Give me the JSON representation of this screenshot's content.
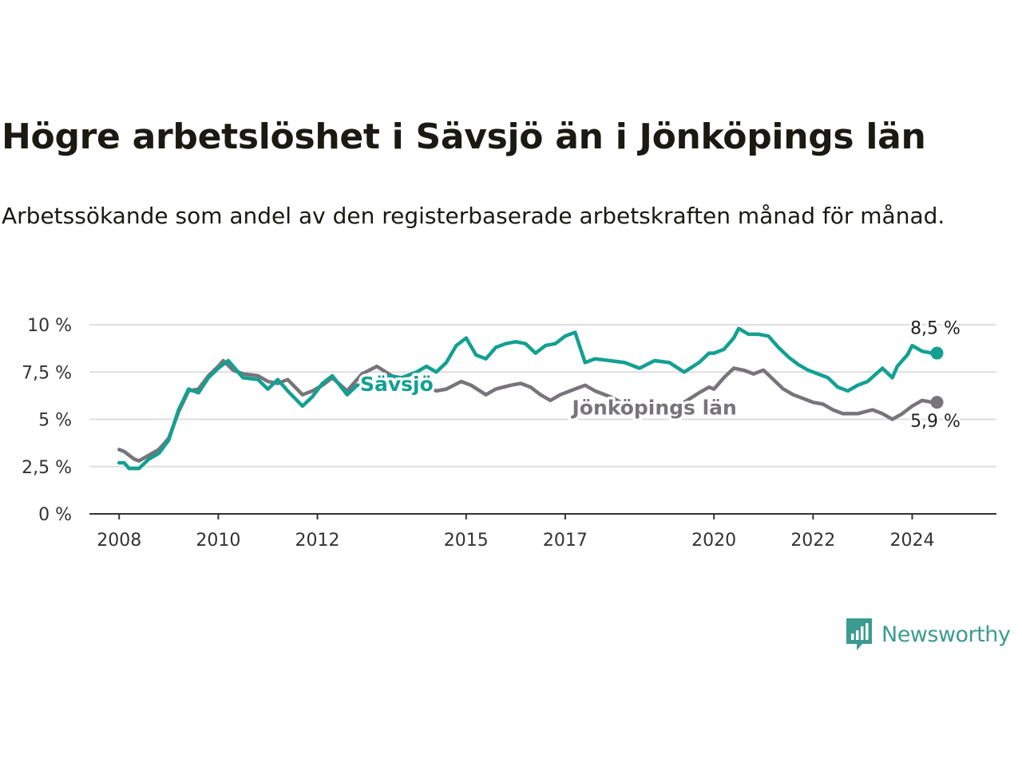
{
  "title": "Högre arbetslöshet i Sävsjö än i Jönköpings län",
  "subtitle": "Arbetssökande som andel av den registerbaserade arbetskraften månad för månad.",
  "brand": {
    "name": "Newsworthy",
    "icon": "newsworthy-logo-icon",
    "color": "#3c9b90"
  },
  "chart_data": {
    "type": "line",
    "title": "Högre arbetslöshet i Sävsjö än i Jönköpings län",
    "xlabel": "",
    "ylabel": "",
    "xlim": [
      2007.4,
      2025.7
    ],
    "ylim": [
      0,
      10
    ],
    "grid": true,
    "x_ticks": [
      2008,
      2010,
      2012,
      2015,
      2017,
      2020,
      2022,
      2024
    ],
    "x_tick_labels": [
      "2008",
      "2010",
      "2012",
      "2015",
      "2017",
      "2020",
      "2022",
      "2024"
    ],
    "y_ticks": [
      0,
      2.5,
      5,
      7.5,
      10
    ],
    "y_tick_labels": [
      "0 %",
      "2,5 %",
      "5 %",
      "7,5 %",
      "10 %"
    ],
    "series": [
      {
        "name": "Sävsjö",
        "label": "Sävsjö",
        "color": "#13a092",
        "end_label": "8,5 %",
        "points": [
          [
            2008.0,
            2.7
          ],
          [
            2008.1,
            2.7
          ],
          [
            2008.2,
            2.4
          ],
          [
            2008.4,
            2.4
          ],
          [
            2008.6,
            2.9
          ],
          [
            2008.8,
            3.2
          ],
          [
            2009.0,
            3.9
          ],
          [
            2009.2,
            5.5
          ],
          [
            2009.4,
            6.6
          ],
          [
            2009.6,
            6.4
          ],
          [
            2009.8,
            7.2
          ],
          [
            2010.0,
            7.7
          ],
          [
            2010.2,
            8.1
          ],
          [
            2010.5,
            7.2
          ],
          [
            2010.8,
            7.1
          ],
          [
            2011.0,
            6.6
          ],
          [
            2011.2,
            7.1
          ],
          [
            2011.4,
            6.5
          ],
          [
            2011.7,
            5.7
          ],
          [
            2011.9,
            6.2
          ],
          [
            2012.1,
            6.9
          ],
          [
            2012.3,
            7.3
          ],
          [
            2012.6,
            6.3
          ],
          [
            2012.8,
            6.8
          ],
          [
            2013.0,
            6.8
          ],
          [
            2013.4,
            7.3
          ],
          [
            2013.7,
            7.2
          ],
          [
            2014.0,
            7.5
          ],
          [
            2014.2,
            7.8
          ],
          [
            2014.4,
            7.5
          ],
          [
            2014.6,
            8.0
          ],
          [
            2014.8,
            8.9
          ],
          [
            2015.0,
            9.3
          ],
          [
            2015.2,
            8.4
          ],
          [
            2015.4,
            8.2
          ],
          [
            2015.6,
            8.8
          ],
          [
            2015.8,
            9.0
          ],
          [
            2016.0,
            9.1
          ],
          [
            2016.2,
            9.0
          ],
          [
            2016.4,
            8.5
          ],
          [
            2016.6,
            8.9
          ],
          [
            2016.8,
            9.0
          ],
          [
            2017.0,
            9.4
          ],
          [
            2017.2,
            9.6
          ],
          [
            2017.4,
            8.0
          ],
          [
            2017.6,
            8.2
          ],
          [
            2017.9,
            8.1
          ],
          [
            2018.2,
            8.0
          ],
          [
            2018.5,
            7.7
          ],
          [
            2018.8,
            8.1
          ],
          [
            2019.1,
            8.0
          ],
          [
            2019.4,
            7.5
          ],
          [
            2019.7,
            8.0
          ],
          [
            2019.9,
            8.5
          ],
          [
            2020.0,
            8.5
          ],
          [
            2020.2,
            8.7
          ],
          [
            2020.4,
            9.3
          ],
          [
            2020.5,
            9.8
          ],
          [
            2020.7,
            9.5
          ],
          [
            2020.9,
            9.5
          ],
          [
            2021.1,
            9.4
          ],
          [
            2021.3,
            8.8
          ],
          [
            2021.5,
            8.3
          ],
          [
            2021.7,
            7.9
          ],
          [
            2021.9,
            7.6
          ],
          [
            2022.1,
            7.4
          ],
          [
            2022.3,
            7.2
          ],
          [
            2022.5,
            6.7
          ],
          [
            2022.7,
            6.5
          ],
          [
            2022.9,
            6.8
          ],
          [
            2023.1,
            7.0
          ],
          [
            2023.4,
            7.7
          ],
          [
            2023.6,
            7.2
          ],
          [
            2023.7,
            7.8
          ],
          [
            2023.9,
            8.4
          ],
          [
            2024.0,
            8.9
          ],
          [
            2024.2,
            8.6
          ],
          [
            2024.4,
            8.5
          ],
          [
            2024.5,
            8.5
          ]
        ]
      },
      {
        "name": "Jönköpings län",
        "label": "Jönköpings län",
        "color": "#77747a",
        "end_label": "5,9 %",
        "points": [
          [
            2008.0,
            3.4
          ],
          [
            2008.1,
            3.3
          ],
          [
            2008.3,
            2.9
          ],
          [
            2008.4,
            2.8
          ],
          [
            2008.6,
            3.1
          ],
          [
            2008.8,
            3.4
          ],
          [
            2009.0,
            4.0
          ],
          [
            2009.2,
            5.4
          ],
          [
            2009.4,
            6.5
          ],
          [
            2009.6,
            6.6
          ],
          [
            2009.8,
            7.3
          ],
          [
            2010.0,
            7.8
          ],
          [
            2010.1,
            8.1
          ],
          [
            2010.3,
            7.6
          ],
          [
            2010.5,
            7.4
          ],
          [
            2010.8,
            7.3
          ],
          [
            2011.0,
            7.0
          ],
          [
            2011.2,
            6.9
          ],
          [
            2011.4,
            7.1
          ],
          [
            2011.7,
            6.3
          ],
          [
            2011.9,
            6.5
          ],
          [
            2012.1,
            6.8
          ],
          [
            2012.3,
            7.2
          ],
          [
            2012.6,
            6.5
          ],
          [
            2012.9,
            7.4
          ],
          [
            2013.2,
            7.8
          ],
          [
            2013.5,
            7.3
          ],
          [
            2013.8,
            7.1
          ],
          [
            2014.0,
            7.0
          ],
          [
            2014.2,
            6.8
          ],
          [
            2014.4,
            6.5
          ],
          [
            2014.6,
            6.6
          ],
          [
            2014.9,
            7.0
          ],
          [
            2015.1,
            6.8
          ],
          [
            2015.4,
            6.3
          ],
          [
            2015.6,
            6.6
          ],
          [
            2015.9,
            6.8
          ],
          [
            2016.1,
            6.9
          ],
          [
            2016.3,
            6.7
          ],
          [
            2016.5,
            6.3
          ],
          [
            2016.7,
            6.0
          ],
          [
            2016.9,
            6.3
          ],
          [
            2017.1,
            6.5
          ],
          [
            2017.4,
            6.8
          ],
          [
            2017.6,
            6.5
          ],
          [
            2017.9,
            6.2
          ],
          [
            2018.2,
            5.8
          ],
          [
            2018.5,
            5.5
          ],
          [
            2018.8,
            5.4
          ],
          [
            2019.1,
            5.5
          ],
          [
            2019.4,
            5.9
          ],
          [
            2019.7,
            6.4
          ],
          [
            2019.9,
            6.7
          ],
          [
            2020.0,
            6.6
          ],
          [
            2020.2,
            7.2
          ],
          [
            2020.4,
            7.7
          ],
          [
            2020.6,
            7.6
          ],
          [
            2020.8,
            7.4
          ],
          [
            2021.0,
            7.6
          ],
          [
            2021.2,
            7.1
          ],
          [
            2021.4,
            6.6
          ],
          [
            2021.6,
            6.3
          ],
          [
            2021.8,
            6.1
          ],
          [
            2022.0,
            5.9
          ],
          [
            2022.2,
            5.8
          ],
          [
            2022.4,
            5.5
          ],
          [
            2022.6,
            5.3
          ],
          [
            2022.9,
            5.3
          ],
          [
            2023.2,
            5.5
          ],
          [
            2023.4,
            5.3
          ],
          [
            2023.6,
            5.0
          ],
          [
            2023.8,
            5.3
          ],
          [
            2024.0,
            5.7
          ],
          [
            2024.2,
            6.0
          ],
          [
            2024.4,
            5.9
          ],
          [
            2024.5,
            5.9
          ]
        ]
      }
    ]
  }
}
